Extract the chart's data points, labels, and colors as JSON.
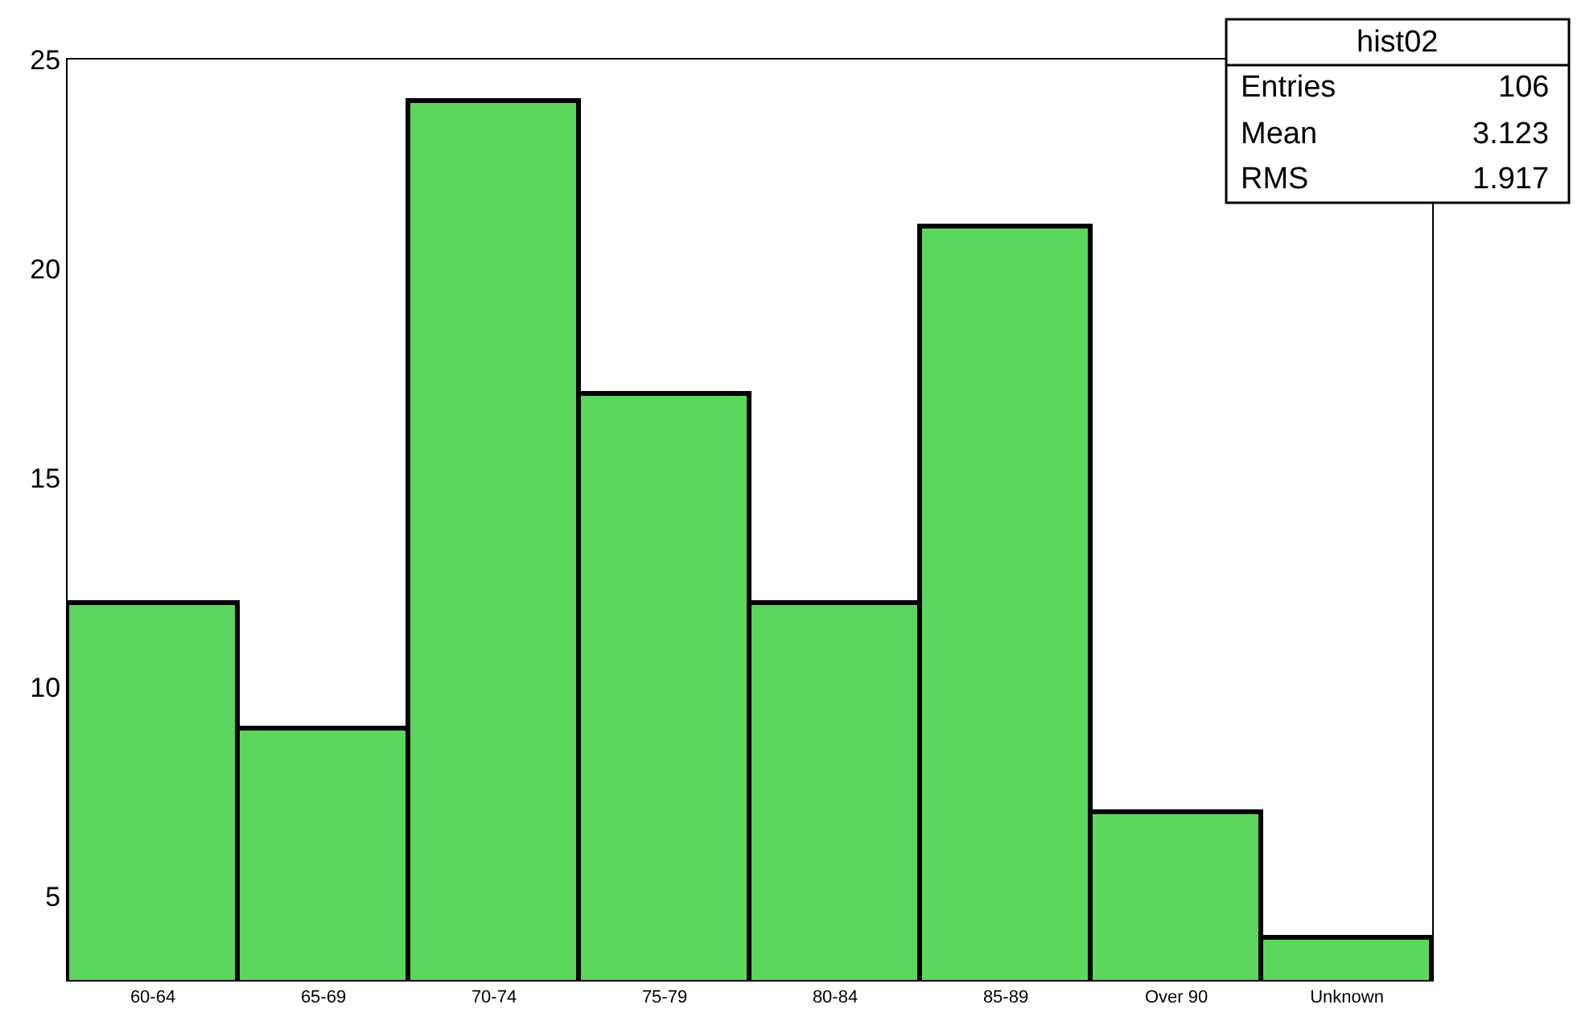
{
  "chart_data": {
    "type": "bar",
    "categories": [
      "60-64",
      "65-69",
      "70-74",
      "75-79",
      "80-84",
      "85-89",
      "Over 90",
      "Unknown"
    ],
    "values": [
      12,
      9,
      24,
      17,
      12,
      21,
      7,
      4
    ],
    "color": "#5cd65c",
    "ylim": [
      3,
      25
    ],
    "yticks": [
      5,
      10,
      15,
      20,
      25
    ],
    "annotations": [
      "hist02",
      "Entries",
      "106",
      "Mean",
      "3.123",
      "RMS",
      "1.917"
    ]
  }
}
